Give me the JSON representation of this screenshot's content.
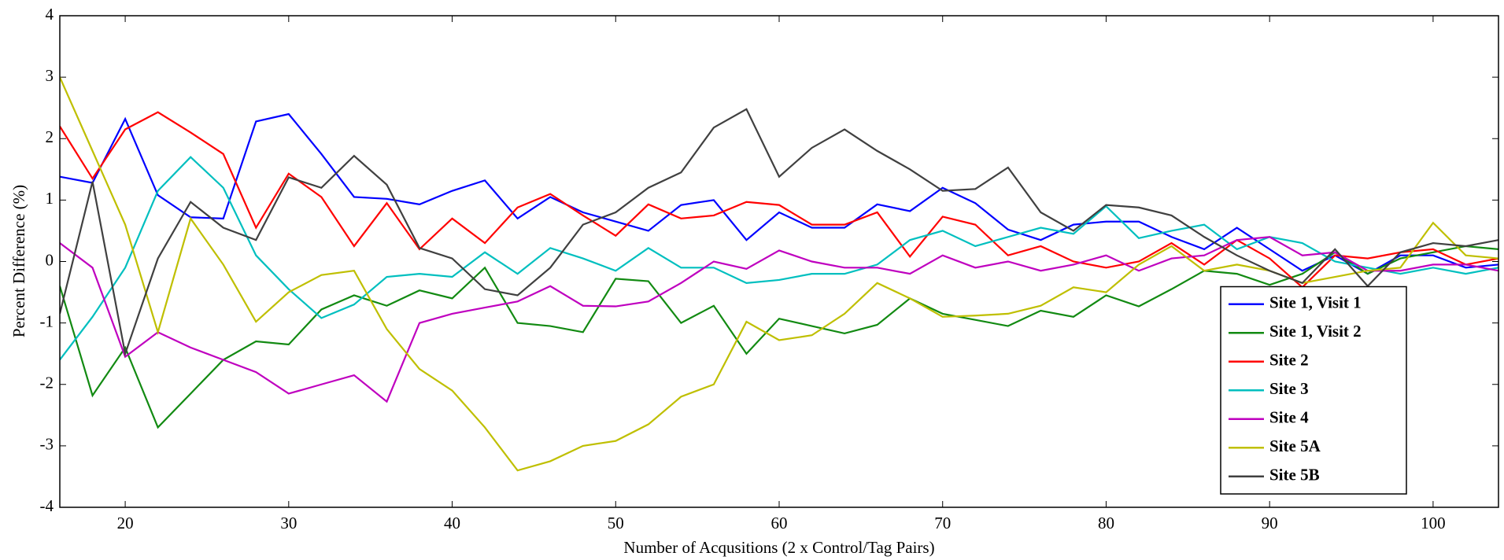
{
  "chart_data": {
    "type": "line",
    "xlabel": "Number of Acqusitions (2 x Control/Tag Pairs)",
    "ylabel": "Percent Difference (%)",
    "x": [
      16,
      18,
      20,
      22,
      24,
      26,
      28,
      30,
      32,
      34,
      36,
      38,
      40,
      42,
      44,
      46,
      48,
      50,
      52,
      54,
      56,
      58,
      60,
      62,
      64,
      66,
      68,
      70,
      72,
      74,
      76,
      78,
      80,
      82,
      84,
      86,
      88,
      90,
      92,
      94,
      96,
      98,
      100,
      102,
      104
    ],
    "xlim": [
      16,
      104
    ],
    "xticks": [
      20,
      30,
      40,
      50,
      60,
      70,
      80,
      90,
      100
    ],
    "ylim": [
      -4,
      4
    ],
    "yticks": [
      -4,
      -3,
      -2,
      -1,
      0,
      1,
      2,
      3,
      4
    ],
    "legend": "lower right",
    "grid": false,
    "series": [
      {
        "name": "Site 1, Visit 1",
        "color": "#0000ff",
        "values": [
          1.38,
          1.28,
          2.32,
          1.08,
          0.72,
          0.7,
          2.28,
          2.4,
          1.75,
          1.05,
          1.02,
          0.93,
          1.15,
          1.32,
          0.7,
          1.05,
          0.8,
          0.65,
          0.5,
          0.92,
          1.0,
          0.35,
          0.8,
          0.55,
          0.55,
          0.93,
          0.82,
          1.2,
          0.95,
          0.52,
          0.35,
          0.6,
          0.65,
          0.65,
          0.4,
          0.2,
          0.55,
          0.2,
          -0.15,
          0.1,
          -0.2,
          0.1,
          0.1,
          -0.1,
          -0.05
        ]
      },
      {
        "name": "Site 1, Visit 2",
        "color": "#128a12",
        "values": [
          -0.4,
          -2.18,
          -1.4,
          -2.7,
          -2.15,
          -1.6,
          -1.3,
          -1.35,
          -0.78,
          -0.55,
          -0.72,
          -0.47,
          -0.6,
          -0.1,
          -1.0,
          -1.05,
          -1.15,
          -0.28,
          -0.32,
          -1.0,
          -0.72,
          -1.5,
          -0.93,
          -1.05,
          -1.17,
          -1.03,
          -0.6,
          -0.85,
          -0.95,
          -1.05,
          -0.8,
          -0.9,
          -0.55,
          -0.73,
          -0.45,
          -0.15,
          -0.2,
          -0.38,
          -0.2,
          0.15,
          -0.2,
          0.05,
          0.15,
          0.25,
          0.2
        ]
      },
      {
        "name": "Site 2",
        "color": "#ff0000",
        "values": [
          2.2,
          1.35,
          2.15,
          2.43,
          2.1,
          1.75,
          0.55,
          1.43,
          1.05,
          0.25,
          0.95,
          0.2,
          0.7,
          0.3,
          0.88,
          1.1,
          0.75,
          0.42,
          0.93,
          0.7,
          0.75,
          0.97,
          0.92,
          0.6,
          0.6,
          0.8,
          0.08,
          0.73,
          0.6,
          0.1,
          0.25,
          0.0,
          -0.1,
          0.0,
          0.3,
          -0.05,
          0.35,
          0.05,
          -0.42,
          0.1,
          0.05,
          0.15,
          0.2,
          -0.05,
          0.05
        ]
      },
      {
        "name": "Site 3",
        "color": "#00bfbf",
        "values": [
          -1.6,
          -0.9,
          -0.1,
          1.15,
          1.7,
          1.2,
          0.1,
          -0.45,
          -0.92,
          -0.7,
          -0.25,
          -0.2,
          -0.25,
          0.15,
          -0.2,
          0.22,
          0.05,
          -0.15,
          0.22,
          -0.1,
          -0.1,
          -0.35,
          -0.3,
          -0.2,
          -0.2,
          -0.05,
          0.35,
          0.5,
          0.25,
          0.4,
          0.55,
          0.45,
          0.9,
          0.38,
          0.5,
          0.6,
          0.2,
          0.4,
          0.3,
          0.0,
          -0.1,
          -0.2,
          -0.1,
          -0.2,
          -0.1
        ]
      },
      {
        "name": "Site 4",
        "color": "#bf00bf",
        "values": [
          0.3,
          -0.1,
          -1.55,
          -1.15,
          -1.4,
          -1.6,
          -1.8,
          -2.15,
          -2.0,
          -1.85,
          -2.28,
          -1.0,
          -0.85,
          -0.75,
          -0.65,
          -0.4,
          -0.72,
          -0.73,
          -0.65,
          -0.35,
          0.0,
          -0.12,
          0.18,
          0.0,
          -0.1,
          -0.1,
          -0.2,
          0.1,
          -0.1,
          0.0,
          -0.15,
          -0.05,
          0.1,
          -0.15,
          0.05,
          0.1,
          0.35,
          0.4,
          0.1,
          0.15,
          -0.15,
          -0.15,
          -0.05,
          -0.05,
          -0.15
        ]
      },
      {
        "name": "Site 5A",
        "color": "#bfbf00",
        "values": [
          3.0,
          1.8,
          0.6,
          -1.15,
          0.7,
          -0.05,
          -0.98,
          -0.5,
          -0.22,
          -0.15,
          -1.1,
          -1.75,
          -2.1,
          -2.7,
          -3.4,
          -3.25,
          -3.0,
          -2.92,
          -2.65,
          -2.2,
          -2.0,
          -0.98,
          -1.28,
          -1.2,
          -0.85,
          -0.35,
          -0.6,
          -0.9,
          -0.88,
          -0.85,
          -0.72,
          -0.42,
          -0.5,
          -0.05,
          0.25,
          -0.15,
          -0.05,
          -0.15,
          -0.35,
          -0.25,
          -0.15,
          -0.1,
          0.63,
          0.1,
          0.05
        ]
      },
      {
        "name": "Site 5B",
        "color": "#404040",
        "values": [
          -0.85,
          1.3,
          -1.5,
          0.05,
          0.97,
          0.55,
          0.35,
          1.37,
          1.2,
          1.72,
          1.25,
          0.22,
          0.05,
          -0.45,
          -0.55,
          -0.1,
          0.6,
          0.8,
          1.2,
          1.45,
          2.18,
          2.48,
          1.38,
          1.85,
          2.15,
          1.8,
          1.5,
          1.15,
          1.18,
          1.53,
          0.8,
          0.5,
          0.92,
          0.88,
          0.75,
          0.4,
          0.1,
          -0.15,
          -0.35,
          0.2,
          -0.4,
          0.15,
          0.3,
          0.25,
          0.35
        ]
      }
    ]
  }
}
